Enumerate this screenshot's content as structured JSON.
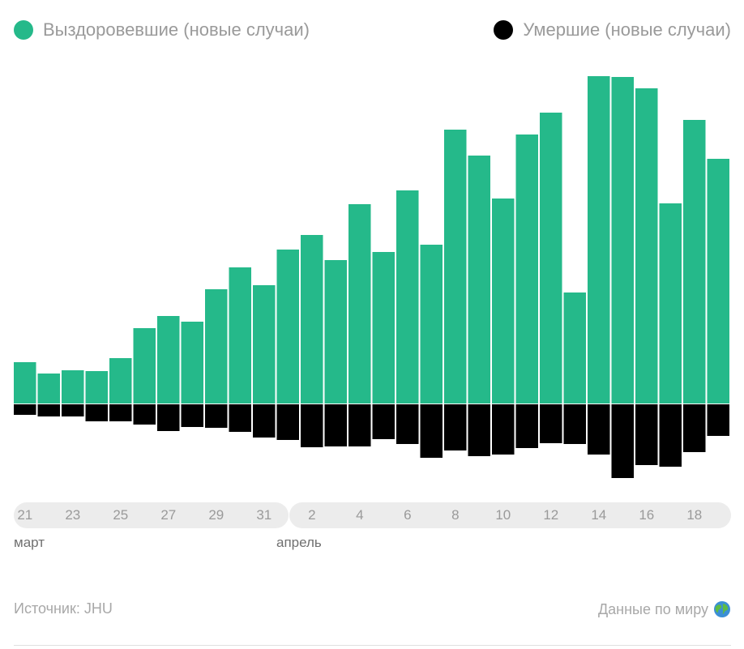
{
  "legend": {
    "recovered_label": "Выздоровевшие (новые случаи)",
    "deaths_label": "Умершие (новые случаи)"
  },
  "colors": {
    "recovered": "#25b98a",
    "deaths": "#000000",
    "pill": "#ececec",
    "text": "#9a9a9a"
  },
  "chart_data": {
    "type": "bar",
    "categories": [
      "21 мар",
      "22 мар",
      "23 мар",
      "24 мар",
      "25 мар",
      "26 мар",
      "27 мар",
      "28 мар",
      "29 мар",
      "30 мар",
      "31 мар",
      "1 апр",
      "2 апр",
      "3 апр",
      "4 апр",
      "5 апр",
      "6 апр",
      "7 апр",
      "8 апр",
      "9 апр",
      "10 апр",
      "11 апр",
      "12 апр",
      "13 апр",
      "14 апр",
      "15 апр",
      "16 апр",
      "17 апр",
      "18 апр",
      "19 апр"
    ],
    "series": [
      {
        "name": "Выздоровевшие (новые случаи)",
        "values": [
          51,
          37,
          41,
          40,
          56,
          93,
          108,
          101,
          141,
          168,
          146,
          190,
          208,
          177,
          246,
          187,
          263,
          196,
          338,
          306,
          253,
          332,
          359,
          137,
          404,
          403,
          389,
          247,
          350,
          302
        ]
      },
      {
        "name": "Умершие (новые случаи)",
        "values": [
          -13,
          -15,
          -15,
          -21,
          -21,
          -25,
          -33,
          -28,
          -29,
          -34,
          -41,
          -44,
          -53,
          -52,
          -52,
          -43,
          -49,
          -66,
          -57,
          -64,
          -62,
          -54,
          -48,
          -49,
          -62,
          -91,
          -75,
          -77,
          -59,
          -39
        ]
      }
    ],
    "stacked": true,
    "ylim": [
      -100,
      410
    ],
    "x_tick_labels": [
      "21",
      "23",
      "25",
      "27",
      "29",
      "31",
      "2",
      "4",
      "6",
      "8",
      "10",
      "12",
      "14",
      "16",
      "18"
    ],
    "months": [
      "март",
      "апрель"
    ]
  },
  "footer": {
    "source": "Источник: JHU",
    "world_link": "Данные по миру"
  }
}
